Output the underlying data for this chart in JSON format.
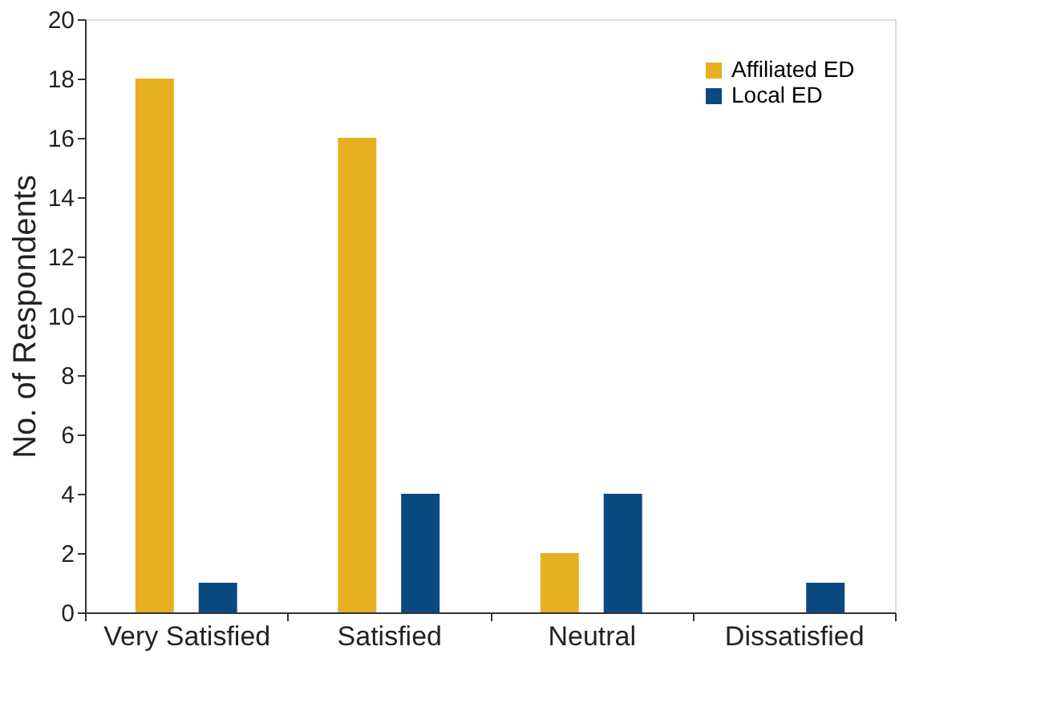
{
  "chart_data": {
    "type": "bar",
    "ylabel": "No. of Respondents",
    "categories": [
      "Very Satisfied",
      "Satisfied",
      "Neutral",
      "Dissatisfied"
    ],
    "series": [
      {
        "name": "Affiliated ED",
        "color": "#e6b022",
        "values": [
          18,
          16,
          2,
          0
        ]
      },
      {
        "name": "Local ED",
        "color": "#0a4a80",
        "values": [
          1,
          4,
          4,
          1
        ]
      }
    ],
    "ylim": [
      0,
      20
    ],
    "yticks": [
      0,
      2,
      4,
      6,
      8,
      10,
      12,
      14,
      16,
      18,
      20
    ],
    "grid": false,
    "legend": "top right"
  }
}
